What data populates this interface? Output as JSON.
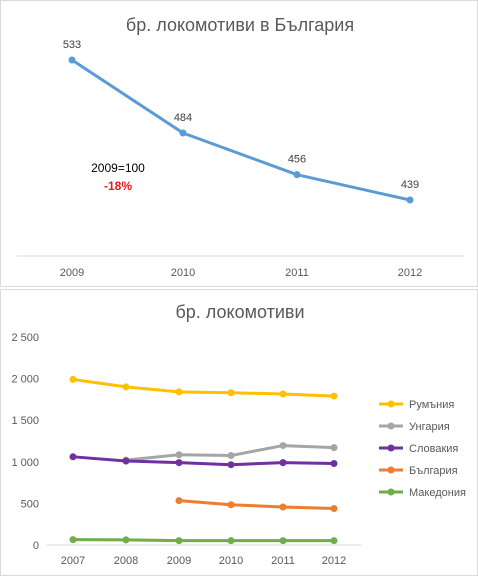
{
  "chart_data": [
    {
      "type": "line",
      "title": "бр. локомотиви в България",
      "categories": [
        "2009",
        "2010",
        "2011",
        "2012"
      ],
      "series": [
        {
          "values": [
            533,
            484,
            456,
            439
          ],
          "color": "#5b9bd5"
        }
      ],
      "data_labels": [
        "533",
        "484",
        "456",
        "439"
      ],
      "ylim": [
        420,
        545
      ],
      "grid": false,
      "annotations": [
        {
          "text": "2009=100",
          "color": "#000000"
        },
        {
          "text": "-18%",
          "color": "#e21b1b"
        }
      ]
    },
    {
      "type": "line",
      "title": "бр. локомотиви",
      "categories": [
        "2007",
        "2008",
        "2009",
        "2010",
        "2011",
        "2012"
      ],
      "ylim": [
        0,
        2500
      ],
      "yticks": [
        "0",
        "500",
        "1 000",
        "1 500",
        "2 000",
        "2 500"
      ],
      "grid": false,
      "legend_position": "right",
      "series": [
        {
          "name": "Румъния",
          "color": "#ffc000",
          "values": [
            1990,
            1900,
            1840,
            1830,
            1815,
            1790
          ]
        },
        {
          "name": "Унгария",
          "color": "#a5a5a5",
          "values": [
            null,
            1020,
            1085,
            1075,
            1195,
            1170
          ]
        },
        {
          "name": "Словакия",
          "color": "#7030a0",
          "values": [
            1060,
            1010,
            990,
            965,
            990,
            980
          ]
        },
        {
          "name": "България",
          "color": "#ed7d31",
          "values": [
            null,
            null,
            533,
            484,
            456,
            439
          ]
        },
        {
          "name": "Македония",
          "color": "#70ad47",
          "values": [
            65,
            62,
            52,
            52,
            52,
            52
          ]
        }
      ]
    }
  ]
}
